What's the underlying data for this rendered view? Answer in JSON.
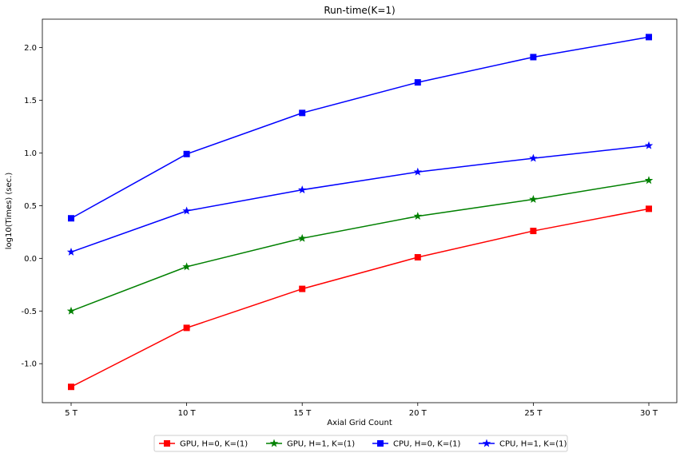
{
  "chart_data": {
    "type": "line",
    "title": "Run-time(K=1)",
    "xlabel": "Axial Grid Count",
    "ylabel": "log10(Times) (sec.)",
    "categories": [
      "5 T",
      "10 T",
      "15 T",
      "20 T",
      "25 T",
      "30 T"
    ],
    "yticks": [
      "-1.0",
      "-0.5",
      "0.0",
      "0.5",
      "1.0",
      "1.5",
      "2.0"
    ],
    "ytick_values": [
      -1.0,
      -0.5,
      0.0,
      0.5,
      1.0,
      1.5,
      2.0
    ],
    "ylim": [
      -1.37,
      2.27
    ],
    "legend_position": "bottom-center",
    "series": [
      {
        "name": "GPU, H=0, K=(1)",
        "color": "#ff0000",
        "marker": "square",
        "values": [
          -1.22,
          -0.66,
          -0.29,
          0.01,
          0.26,
          0.47
        ]
      },
      {
        "name": "GPU, H=1, K=(1)",
        "color": "#008000",
        "marker": "star",
        "values": [
          -0.5,
          -0.08,
          0.19,
          0.4,
          0.56,
          0.74
        ]
      },
      {
        "name": "CPU, H=0, K=(1)",
        "color": "#0000ff",
        "marker": "square",
        "values": [
          0.38,
          0.99,
          1.38,
          1.67,
          1.91,
          2.1
        ]
      },
      {
        "name": "CPU, H=1, K=(1)",
        "color": "#0000ff",
        "marker": "star",
        "values": [
          0.06,
          0.45,
          0.65,
          0.82,
          0.95,
          1.07
        ]
      }
    ]
  }
}
